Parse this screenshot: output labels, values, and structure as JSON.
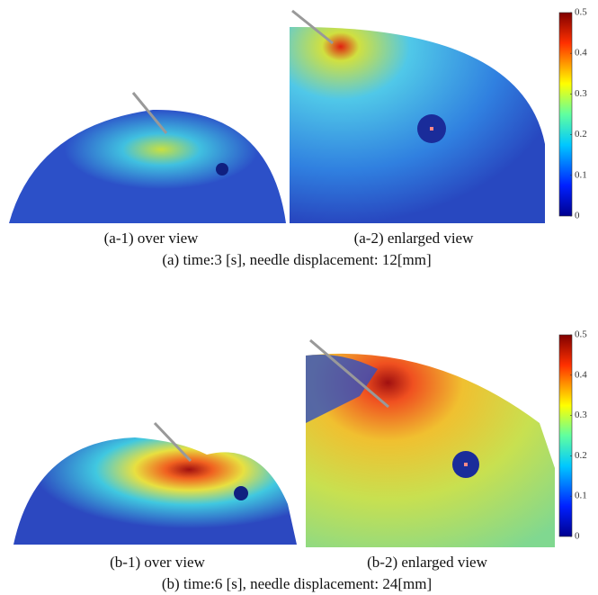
{
  "panels": [
    {
      "subfigures": [
        {
          "caption": "(a-1) over view"
        },
        {
          "caption": "(a-2) enlarged view"
        }
      ],
      "caption": "(a) time:3 [s], needle displacement: 12[mm]",
      "colorbar": {
        "lim": [
          0,
          0.5
        ],
        "ticks": [
          0,
          0.1,
          0.2,
          0.3,
          0.4,
          0.5
        ]
      }
    },
    {
      "subfigures": [
        {
          "caption": "(b-1) over view"
        },
        {
          "caption": "(b-2) enlarged view"
        }
      ],
      "caption": "(b) time:6 [s], needle displacement: 24[mm]",
      "colorbar": {
        "lim": [
          0,
          0.5
        ],
        "ticks": [
          0,
          0.1,
          0.2,
          0.3,
          0.4,
          0.5
        ]
      }
    }
  ]
}
